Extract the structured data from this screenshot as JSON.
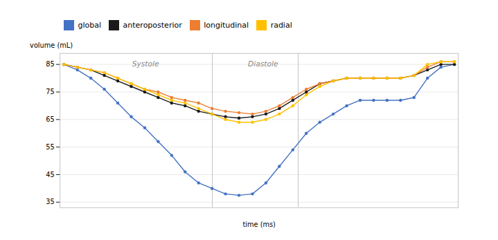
{
  "chart_data": {
    "type": "line",
    "xlabel": "time (ms)",
    "ylabel": "volume (mL)",
    "x": [
      0,
      0.034482758620689655,
      0.06896551724137931,
      0.10344827586206896,
      0.13793103448275862,
      0.1724137931034483,
      0.20689655172413793,
      0.2413793103448276,
      0.27586206896551724,
      0.3103448275862069,
      0.3448275862068966,
      0.3793103448275862,
      0.41379310344827586,
      0.4482758620689655,
      0.4827586206896552,
      0.5172413793103449,
      0.5517241379310345,
      0.5862068965517241,
      0.6206896551724138,
      0.6551724137931034,
      0.6896551724137931,
      0.7241379310344828,
      0.7586206896551724,
      0.7931034482758621,
      0.8275862068965517,
      0.8620689655172413,
      0.896551724137931,
      0.9310344827586207,
      0.9655172413793104,
      1
    ],
    "xlim": [
      -0.01,
      1.01
    ],
    "ylim": [
      33,
      89
    ],
    "yticks": [
      35,
      45,
      55,
      65,
      75,
      85
    ],
    "grid": true,
    "tick_labels": "y",
    "legend": "top",
    "marker": "circle",
    "series": [
      {
        "name": "global",
        "color": "#4472C4",
        "values": [
          85,
          83,
          80,
          76,
          71,
          66,
          62,
          57,
          52,
          46,
          42,
          40,
          38,
          37.5,
          38,
          42,
          48,
          54,
          60,
          64,
          67,
          70,
          72,
          72,
          72,
          72,
          73,
          80,
          84,
          85
        ]
      },
      {
        "name": "anteroposterior",
        "color": "#1a1a1a",
        "values": [
          85,
          84,
          83,
          81,
          79,
          77,
          75,
          73,
          71,
          70,
          68,
          67,
          66,
          65.5,
          66,
          67,
          69,
          72,
          75,
          78,
          79,
          80,
          80,
          80,
          80,
          80,
          81,
          83,
          85,
          85
        ]
      },
      {
        "name": "longitudinal",
        "color": "#ED7D31",
        "values": [
          85,
          84,
          83,
          82,
          80,
          78,
          76,
          75,
          73,
          72,
          71,
          69,
          68,
          67.5,
          67,
          68,
          70,
          73,
          76,
          78,
          79,
          80,
          80,
          80,
          80,
          80,
          81,
          84,
          86,
          86
        ]
      },
      {
        "name": "radial",
        "color": "#FFC000",
        "values": [
          85,
          84,
          83,
          82,
          80,
          78,
          76,
          74,
          72,
          71,
          69,
          67,
          65,
          64,
          64,
          65,
          67,
          70,
          74,
          77,
          79,
          80,
          80,
          80,
          80,
          80,
          81,
          85,
          86,
          86
        ]
      }
    ],
    "boundaries": [
      0.38,
      0.6
    ],
    "annotations": [
      {
        "text": "Systole",
        "x": 0.209,
        "y": 86.2
      },
      {
        "text": "Diastole",
        "x": 0.51,
        "y": 86.2
      }
    ]
  }
}
